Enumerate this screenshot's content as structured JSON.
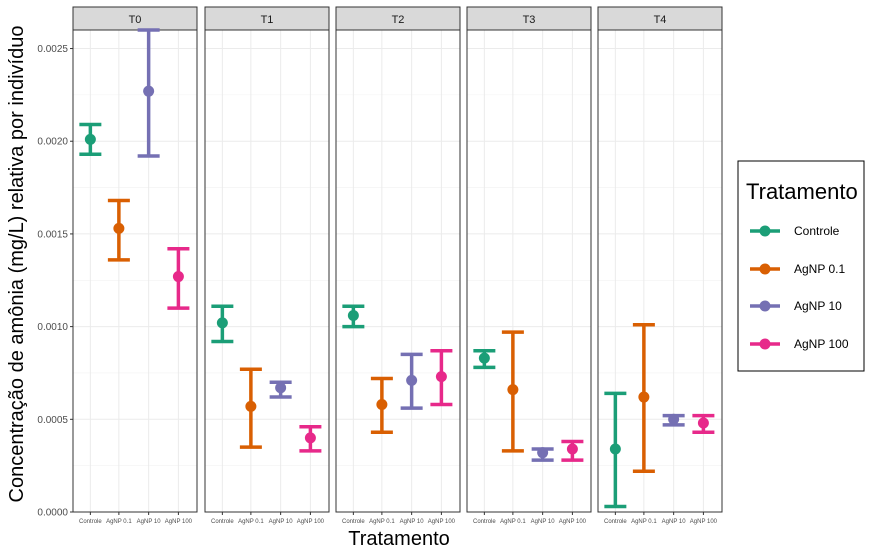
{
  "chart_data": {
    "type": "scatter",
    "title": "",
    "xlabel": "Tratamento",
    "ylabel": "Concentração de amônia (mg/L) relativa por indivíduo",
    "ylim": [
      0,
      0.0026
    ],
    "y_ticks": [
      "0.0000",
      "0.0005",
      "0.0010",
      "0.0015",
      "0.0020",
      "0.0025"
    ],
    "y_tick_values": [
      0,
      0.0005,
      0.001,
      0.0015,
      0.002,
      0.0025
    ],
    "grid": true,
    "legend": {
      "title": "Tratamento",
      "position": "right"
    },
    "categories": [
      "Controle",
      "AgNP 0.1",
      "AgNP 10",
      "AgNP 100"
    ],
    "colors": [
      "#1b9e77",
      "#d95f02",
      "#7570b3",
      "#e7298a"
    ],
    "panels": [
      {
        "label": "T0",
        "mean": [
          0.00201,
          0.00153,
          0.00227,
          0.00127
        ],
        "lower": [
          0.00193,
          0.00136,
          0.00192,
          0.0011
        ],
        "upper": [
          0.00209,
          0.00168,
          0.0026,
          0.00142
        ]
      },
      {
        "label": "T1",
        "mean": [
          0.00102,
          0.00057,
          0.00067,
          0.0004
        ],
        "lower": [
          0.00092,
          0.00035,
          0.00062,
          0.00033
        ],
        "upper": [
          0.00111,
          0.00077,
          0.0007,
          0.00046
        ]
      },
      {
        "label": "T2",
        "mean": [
          0.00106,
          0.00058,
          0.00071,
          0.00073
        ],
        "lower": [
          0.001,
          0.00043,
          0.00056,
          0.00058
        ],
        "upper": [
          0.00111,
          0.00072,
          0.00085,
          0.00087
        ]
      },
      {
        "label": "T3",
        "mean": [
          0.00083,
          0.00066,
          0.00032,
          0.00034
        ],
        "lower": [
          0.00078,
          0.00033,
          0.00028,
          0.00028
        ],
        "upper": [
          0.00087,
          0.00097,
          0.00034,
          0.00038
        ]
      },
      {
        "label": "T4",
        "mean": [
          0.00034,
          0.00062,
          0.0005,
          0.00048
        ],
        "lower": [
          3e-05,
          0.00022,
          0.00047,
          0.00043
        ],
        "upper": [
          0.00064,
          0.00101,
          0.00052,
          0.00052
        ]
      }
    ]
  }
}
